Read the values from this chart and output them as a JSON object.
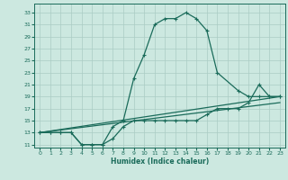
{
  "xlabel": "Humidex (Indice chaleur)",
  "bg_color": "#cce8e0",
  "grid_color": "#aaccc4",
  "line_color": "#1a6b5a",
  "xlim": [
    -0.5,
    23.5
  ],
  "ylim": [
    10.5,
    34.5
  ],
  "yticks": [
    11,
    13,
    15,
    17,
    19,
    21,
    23,
    25,
    27,
    29,
    31,
    33
  ],
  "xticks": [
    0,
    1,
    2,
    3,
    4,
    5,
    6,
    7,
    8,
    9,
    10,
    11,
    12,
    13,
    14,
    15,
    16,
    17,
    18,
    19,
    20,
    21,
    22,
    23
  ],
  "curve1_x": [
    0,
    1,
    2,
    3,
    4,
    5,
    6,
    7,
    8,
    9,
    10,
    11,
    12,
    13,
    14,
    15,
    16,
    17,
    19,
    20,
    21,
    22,
    23
  ],
  "curve1_y": [
    13,
    13,
    13,
    13,
    11,
    11,
    11,
    14,
    15,
    22,
    26,
    31,
    32,
    32,
    33,
    32,
    30,
    23,
    20,
    19,
    19,
    19,
    19
  ],
  "curve2_x": [
    0,
    1,
    2,
    3,
    4,
    5,
    6,
    7,
    8,
    9,
    10,
    11,
    12,
    13,
    14,
    15,
    16,
    17,
    18,
    19,
    20,
    21,
    22,
    23
  ],
  "curve2_y": [
    13,
    13,
    13,
    13,
    11,
    11,
    11,
    12,
    14,
    15,
    15,
    15,
    15,
    15,
    15,
    15,
    16,
    17,
    17,
    17,
    18,
    21,
    19,
    19
  ],
  "line3_x": [
    0,
    23
  ],
  "line3_y": [
    13,
    19
  ],
  "line4_x": [
    0,
    23
  ],
  "line4_y": [
    13,
    18
  ]
}
